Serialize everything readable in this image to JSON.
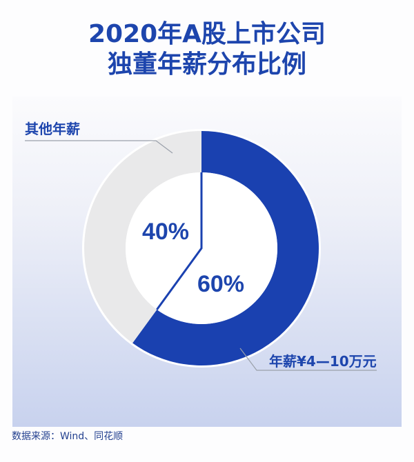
{
  "chart_data": {
    "type": "pie",
    "style": "donut",
    "title_lines": [
      "2020年A股上市公司",
      "独董年薪分布比例"
    ],
    "slices": [
      {
        "label": "年薪¥4—10万元",
        "value": 60,
        "value_label": "60%",
        "color": "#1a41b0"
      },
      {
        "label": "其他年薪",
        "value": 40,
        "value_label": "40%",
        "color": "#e9e9ea"
      }
    ],
    "start": "top",
    "direction": "clockwise",
    "label_color": "#1d45ad"
  },
  "footer": {
    "source": "数据来源：Wind、同花顺"
  }
}
